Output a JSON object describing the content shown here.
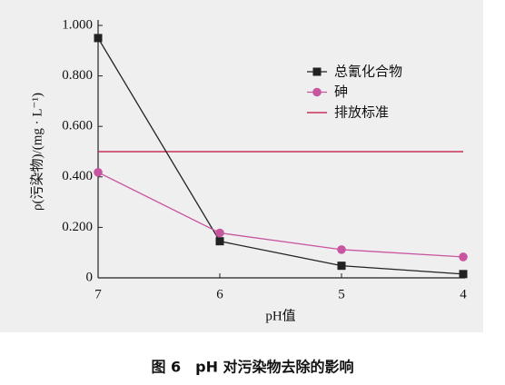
{
  "chart_data": {
    "type": "line",
    "y_label": "ρ(污染物)/(mg · L⁻¹)",
    "x_label": "pH值",
    "caption": "图 6　pH 对污染物去除的影响",
    "x": [
      7,
      6,
      5,
      4
    ],
    "xlim": [
      7,
      4
    ],
    "xticks": [
      7,
      6,
      5,
      4
    ],
    "ylim": [
      0,
      1
    ],
    "yticks": [
      {
        "value": 1,
        "label": "1.000"
      },
      {
        "value": 0.8,
        "label": "0.800"
      },
      {
        "value": 0.6,
        "label": "0.600"
      },
      {
        "value": 0.4,
        "label": "0.400"
      },
      {
        "value": 0.2,
        "label": "0.200"
      },
      0
    ],
    "series": [
      {
        "name": "总氰化合物",
        "color": "#222222",
        "marker": "square",
        "values": [
          0.95,
          0.145,
          0.048,
          0.015
        ]
      },
      {
        "name": "砷",
        "color": "#c8559f",
        "marker": "circle",
        "values": [
          0.418,
          0.178,
          0.112,
          0.083
        ]
      }
    ],
    "reference_line": {
      "name": "排放标准",
      "color": "#c8325a",
      "value": 0.5
    }
  }
}
